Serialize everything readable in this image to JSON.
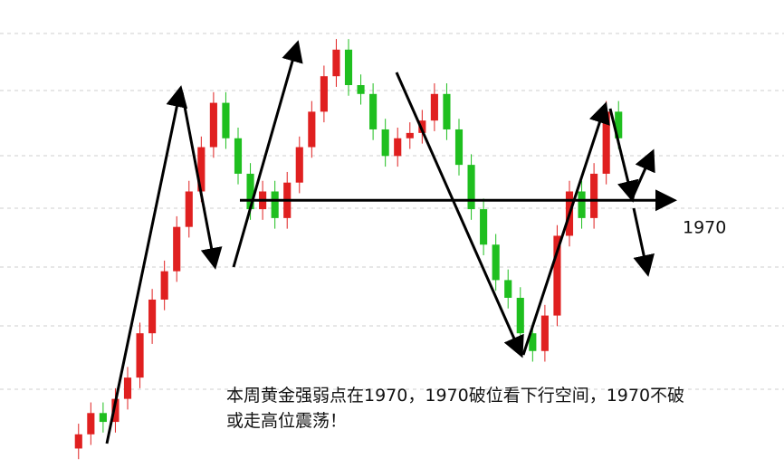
{
  "chart_data": {
    "type": "candlestick",
    "open": [
      1830,
      1838,
      1850,
      1845,
      1858,
      1870,
      1895,
      1914,
      1930,
      1955,
      1975,
      2000,
      2025,
      2005,
      1985,
      1965,
      1975,
      1960,
      1980,
      2000,
      2020,
      2040,
      2055,
      2035,
      2030,
      2010,
      1995,
      2005,
      2008,
      2015,
      2030,
      2010,
      1990,
      1965,
      1945,
      1925,
      1915,
      1895,
      1885,
      1905,
      1950,
      1975,
      1960,
      1985,
      2020
    ],
    "high": [
      1844,
      1856,
      1856,
      1864,
      1876,
      1901,
      1920,
      1936,
      1961,
      1981,
      2006,
      2031,
      2031,
      2011,
      1991,
      1981,
      1981,
      1986,
      2006,
      2026,
      2046,
      2061,
      2061,
      2041,
      2036,
      2016,
      2011,
      2014,
      2021,
      2036,
      2036,
      2016,
      1996,
      1971,
      1951,
      1931,
      1921,
      1901,
      1911,
      1956,
      1981,
      1981,
      1991,
      2026,
      2026
    ],
    "low": [
      1824,
      1832,
      1839,
      1839,
      1852,
      1864,
      1889,
      1908,
      1924,
      1949,
      1969,
      1994,
      1999,
      1979,
      1959,
      1959,
      1954,
      1954,
      1974,
      1994,
      2014,
      2034,
      2029,
      2024,
      2004,
      1989,
      1989,
      1999,
      2002,
      2009,
      2004,
      1984,
      1959,
      1939,
      1919,
      1909,
      1889,
      1879,
      1879,
      1899,
      1944,
      1954,
      1954,
      1979,
      1999
    ],
    "close": [
      1838,
      1850,
      1845,
      1858,
      1870,
      1895,
      1914,
      1930,
      1955,
      1975,
      2000,
      2025,
      2005,
      1985,
      1965,
      1975,
      1960,
      1980,
      2000,
      2020,
      2040,
      2055,
      2035,
      2030,
      2010,
      1995,
      2005,
      2008,
      2015,
      2030,
      2010,
      1990,
      1965,
      1945,
      1925,
      1915,
      1895,
      1885,
      1905,
      1950,
      1975,
      1960,
      1985,
      2020,
      2005
    ],
    "up_color": "#e02020",
    "down_color": "#1fbf1f",
    "ylim": [
      1819,
      2083
    ],
    "hline": 1970,
    "annotation": [
      "本周黄金强弱点在1970，1970破位看下行空间，1970不破",
      "或走高位震荡！"
    ]
  }
}
